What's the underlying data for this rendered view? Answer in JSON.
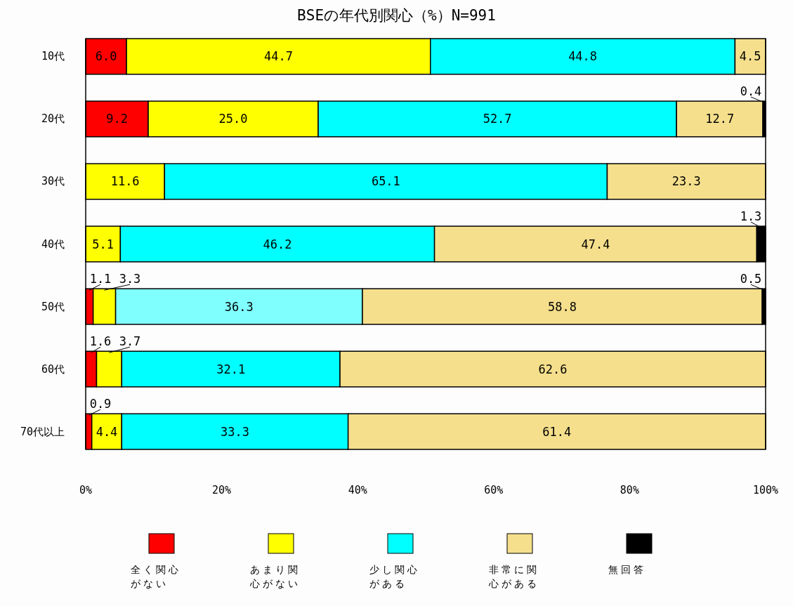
{
  "chart_data": {
    "type": "bar",
    "orientation": "horizontal",
    "stacked": true,
    "title": "BSEの年代別関心（%）N=991",
    "categories": [
      "10代",
      "20代",
      "30代",
      "40代",
      "50代",
      "60代",
      "70代以上"
    ],
    "series": [
      {
        "name": "全く関心がない",
        "color": "#ff0000",
        "values": [
          6.0,
          9.2,
          null,
          null,
          1.1,
          1.6,
          0.9
        ],
        "value_labels": [
          "6.0",
          "9.2",
          null,
          null,
          "1.1",
          "1.6",
          "0.9"
        ]
      },
      {
        "name": "あまり関心がない",
        "color": "#ffff00",
        "values": [
          44.7,
          25.0,
          11.6,
          5.1,
          3.3,
          3.7,
          4.4
        ],
        "value_labels": [
          "44.7",
          "25.0",
          "11.6",
          "5.1",
          "3.3",
          "3.7",
          "4.4"
        ]
      },
      {
        "name": "少し関心がある",
        "color": "#00ffff",
        "colors": [
          "#00ffff",
          "#00ffff",
          "#00ffff",
          "#00ffff",
          "#80ffff",
          "#00ffff",
          "#00ffff"
        ],
        "values": [
          44.8,
          52.7,
          65.1,
          46.2,
          36.3,
          32.1,
          33.3
        ],
        "value_labels": [
          "44.8",
          "52.7",
          "65.1",
          "46.2",
          "36.3",
          "32.1",
          "33.3"
        ]
      },
      {
        "name": "非常に関心がある",
        "color": "#f5df8c",
        "values": [
          4.5,
          12.7,
          23.3,
          47.4,
          58.8,
          62.6,
          61.4
        ],
        "value_labels": [
          "4.5",
          "12.7",
          "23.3",
          "47.4",
          "58.8",
          "62.6",
          "61.4"
        ]
      },
      {
        "name": "無回答",
        "color": "#000000",
        "values": [
          null,
          0.4,
          null,
          1.3,
          0.5,
          null,
          null
        ],
        "value_labels": [
          null,
          "0.4",
          null,
          "1.3",
          "0.5",
          null,
          null
        ]
      }
    ],
    "xlim": [
      0,
      100
    ],
    "xticks": [
      {
        "value": 0,
        "label": "0%"
      },
      {
        "value": 20,
        "label": "20%"
      },
      {
        "value": 40,
        "label": "40%"
      },
      {
        "value": 60,
        "label": "60%"
      },
      {
        "value": 80,
        "label": "80%"
      },
      {
        "value": 100,
        "label": "100%"
      }
    ],
    "grid": false,
    "legend": "bottom"
  }
}
